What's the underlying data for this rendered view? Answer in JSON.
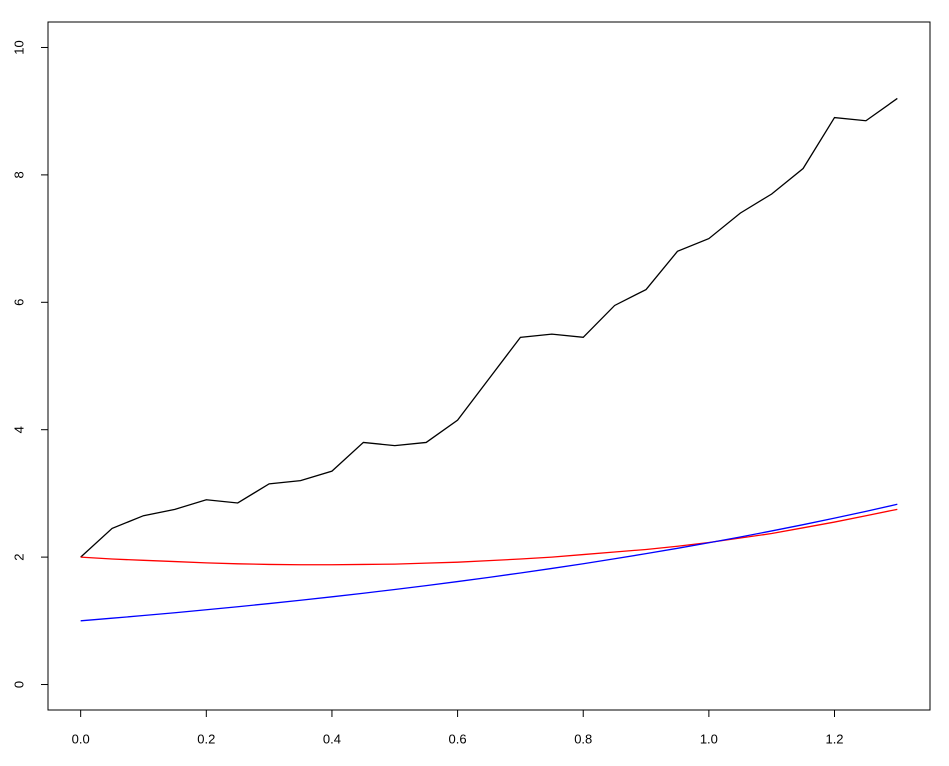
{
  "chart_data": {
    "type": "line",
    "x": [
      0,
      0.05,
      0.1,
      0.15,
      0.2,
      0.25,
      0.3,
      0.35,
      0.4,
      0.45,
      0.5,
      0.55,
      0.6,
      0.65,
      0.7,
      0.75,
      0.8,
      0.85,
      0.9,
      0.95,
      1.0,
      1.05,
      1.1,
      1.15,
      1.2,
      1.25,
      1.3
    ],
    "series": [
      {
        "color": "#000000",
        "values": [
          2.0,
          2.45,
          2.65,
          2.75,
          2.9,
          2.85,
          3.15,
          3.2,
          3.35,
          3.8,
          3.75,
          3.8,
          4.15,
          4.8,
          5.45,
          5.5,
          5.45,
          5.95,
          6.2,
          6.8,
          7.0,
          7.4,
          7.7,
          8.1,
          8.9,
          8.85,
          9.2
        ]
      },
      {
        "color": "#ff0000",
        "values": [
          2.0,
          1.97,
          1.95,
          1.93,
          1.91,
          1.895,
          1.885,
          1.88,
          1.88,
          1.885,
          1.89,
          1.905,
          1.92,
          1.945,
          1.97,
          2.0,
          2.04,
          2.08,
          2.12,
          2.17,
          2.23,
          2.3,
          2.37,
          2.46,
          2.55,
          2.65,
          2.75
        ]
      },
      {
        "color": "#0000ff",
        "values": [
          1.0,
          1.041,
          1.083,
          1.127,
          1.174,
          1.221,
          1.271,
          1.323,
          1.377,
          1.433,
          1.492,
          1.553,
          1.616,
          1.682,
          1.751,
          1.822,
          1.896,
          1.974,
          2.054,
          2.138,
          2.226,
          2.316,
          2.411,
          2.509,
          2.612,
          2.718,
          2.829
        ]
      }
    ],
    "xlim": [
      -0.052,
      1.352
    ],
    "xticks": [
      {
        "value": 0,
        "label": "0.0"
      },
      0.2,
      0.4,
      0.6,
      0.8,
      {
        "value": 1,
        "label": "1.0"
      },
      1.2
    ],
    "ylim": [
      -0.4,
      10.4
    ],
    "yticks": [
      0,
      2,
      4,
      6,
      8,
      10
    ]
  }
}
